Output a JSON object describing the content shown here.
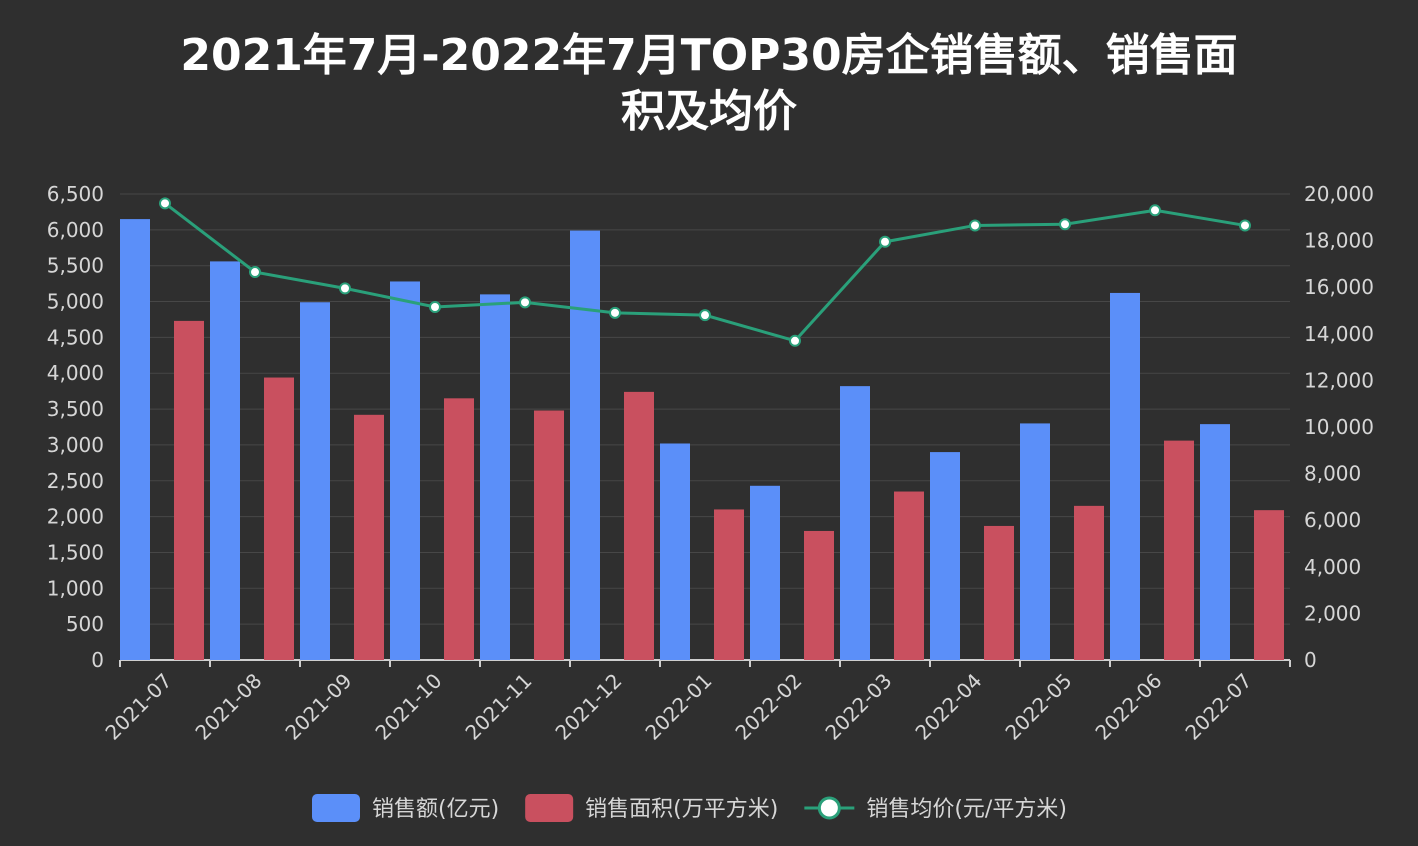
{
  "title_lines": [
    "2021年7月-2022年7月TOP30房企销售额、销售面",
    "积及均价"
  ],
  "chart_data": {
    "type": "bar",
    "categories": [
      "2021-07",
      "2021-08",
      "2021-09",
      "2021-10",
      "2021-11",
      "2021-12",
      "2022-01",
      "2022-02",
      "2022-03",
      "2022-04",
      "2022-05",
      "2022-06",
      "2022-07"
    ],
    "series": [
      {
        "name": "销售额(亿元)",
        "type": "bar",
        "axis": "left",
        "color": "#5b8ff9",
        "values": [
          6150,
          5560,
          4990,
          5280,
          5100,
          5990,
          3020,
          2430,
          3820,
          2900,
          3300,
          5120,
          3290
        ]
      },
      {
        "name": "销售面积(万平方米)",
        "type": "bar",
        "axis": "left",
        "color": "#c9505f",
        "values": [
          4730,
          3940,
          3420,
          3650,
          3480,
          3740,
          2100,
          1800,
          2350,
          1870,
          2150,
          3060,
          2090
        ]
      },
      {
        "name": "销售均价(元/平方米)",
        "type": "line",
        "axis": "right",
        "color": "#2aa07a",
        "values": [
          19600,
          16650,
          15950,
          15150,
          15350,
          14900,
          14800,
          13700,
          17950,
          18650,
          18700,
          19300,
          18650
        ]
      }
    ],
    "left_axis": {
      "min": 0,
      "max": 6500,
      "ticks": [
        "0",
        "500",
        "1,000",
        "1,500",
        "2,000",
        "2,500",
        "3,000",
        "3,500",
        "4,000",
        "4,500",
        "5,000",
        "5,500",
        "6,000",
        "6,500"
      ]
    },
    "right_axis": {
      "min": 0,
      "max": 20000,
      "ticks": [
        "0",
        "2,000",
        "4,000",
        "6,000",
        "8,000",
        "10,000",
        "12,000",
        "14,000",
        "16,000",
        "18,000",
        "20,000"
      ]
    },
    "grid": true,
    "legend_position": "bottom-center"
  }
}
